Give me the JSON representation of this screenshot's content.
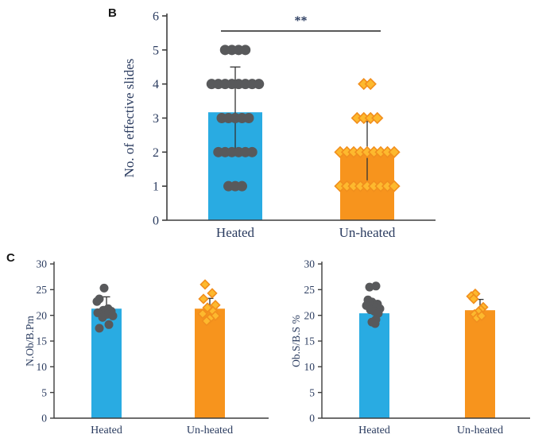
{
  "figure": {
    "panel_b_label": "B",
    "panel_c_label": "C"
  },
  "colors": {
    "blue_bar": "#29ABE2",
    "orange_bar": "#F7941D",
    "gray_marker": "#58595B",
    "diamond_fill": "#FDB92E",
    "diamond_stroke": "#F18E1D",
    "axis": "#3D3D3D",
    "error_bar": "#333333",
    "text": "#2A3B5F",
    "panel_letter": "#161616"
  },
  "chart_data": [
    {
      "id": "panel-b-chart",
      "type": "bar",
      "title": "",
      "xlabel": "",
      "ylabel": "No. of effective slides",
      "ylim": [
        0,
        6
      ],
      "yticks": [
        0,
        1,
        2,
        3,
        4,
        5,
        6
      ],
      "categories": [
        "Heated",
        "Un-heated"
      ],
      "points_mode": "rows",
      "significance": {
        "label": "**",
        "between": [
          "Heated",
          "Un-heated"
        ]
      },
      "series": [
        {
          "name": "Heated",
          "bar": 3.17,
          "err_low": 2.1,
          "err_high": 4.5,
          "err_style": "both",
          "bar_color": "#29ABE2",
          "marker": "circle",
          "marker_fill": "#58595B",
          "points": [
            5,
            5,
            5,
            5,
            4,
            4,
            4,
            4,
            4,
            4,
            4,
            4,
            3,
            3,
            3,
            3,
            3,
            2,
            2,
            2,
            2,
            2,
            2,
            1,
            1,
            1
          ]
        },
        {
          "name": "Un-heated",
          "bar": 1.96,
          "err_low": 1.05,
          "err_high": 2.9,
          "err_style": "both",
          "bar_color": "#F7941D",
          "marker": "diamond",
          "marker_fill": "#FDB92E",
          "marker_stroke": "#F18E1D",
          "points": [
            4,
            4,
            3,
            3,
            3,
            3,
            2,
            2,
            2,
            2,
            2,
            2,
            2,
            2,
            2,
            1,
            1,
            1,
            1,
            1,
            1,
            1,
            1,
            1
          ]
        }
      ]
    },
    {
      "id": "panel-c-left-chart",
      "type": "bar",
      "title": "",
      "xlabel": "",
      "ylabel": "N.Ob/B.Pm",
      "ylim": [
        0,
        30
      ],
      "yticks": [
        0,
        5,
        10,
        15,
        20,
        25,
        30
      ],
      "categories": [
        "Heated",
        "Un-heated"
      ],
      "points_mode": "jitter",
      "series": [
        {
          "name": "Heated",
          "bar": 21.3,
          "err_low": 21.3,
          "err_high": 23.6,
          "err_style": "upper",
          "bar_color": "#29ABE2",
          "marker": "circle",
          "marker_fill": "#58595B",
          "points": [
            [
              -3,
              25.3
            ],
            [
              -9,
              23.2
            ],
            [
              -12,
              22.7
            ],
            [
              2,
              21.3
            ],
            [
              -4,
              21.0
            ],
            [
              6,
              20.8
            ],
            [
              -11,
              20.5
            ],
            [
              1,
              20.2
            ],
            [
              8,
              19.9
            ],
            [
              -5,
              19.6
            ],
            [
              3,
              18.2
            ],
            [
              -9,
              17.5
            ]
          ]
        },
        {
          "name": "Un-heated",
          "bar": 21.3,
          "err_low": 21.3,
          "err_high": 23.3,
          "err_style": "upper",
          "bar_color": "#F7941D",
          "marker": "diamond",
          "marker_fill": "#FDB92E",
          "marker_stroke": "#F18E1D",
          "points": [
            [
              -6,
              26.0
            ],
            [
              3,
              24.3
            ],
            [
              -8,
              23.2
            ],
            [
              7,
              22.0
            ],
            [
              -3,
              21.5
            ],
            [
              4,
              20.8
            ],
            [
              -9,
              20.3
            ],
            [
              7,
              19.9
            ],
            [
              0,
              19.4
            ],
            [
              -4,
              18.9
            ]
          ]
        }
      ]
    },
    {
      "id": "panel-c-right-chart",
      "type": "bar",
      "title": "",
      "xlabel": "",
      "ylabel": "Ob.S/B.S %",
      "ylim": [
        0,
        30
      ],
      "yticks": [
        0,
        5,
        10,
        15,
        20,
        25,
        30
      ],
      "categories": [
        "Heated",
        "Un-heated"
      ],
      "points_mode": "jitter",
      "series": [
        {
          "name": "Heated",
          "bar": 20.4,
          "err_low": 20.4,
          "err_high": 22.6,
          "err_style": "upper",
          "bar_color": "#29ABE2",
          "marker": "circle",
          "marker_fill": "#58595B",
          "points": [
            [
              -6,
              25.5
            ],
            [
              2,
              25.7
            ],
            [
              -8,
              23.0
            ],
            [
              -3,
              22.6
            ],
            [
              4,
              22.2
            ],
            [
              -10,
              21.9
            ],
            [
              1,
              21.6
            ],
            [
              7,
              21.3
            ],
            [
              -5,
              21.1
            ],
            [
              0,
              20.8
            ],
            [
              5,
              20.4
            ],
            [
              2,
              19.2
            ],
            [
              -3,
              18.7
            ],
            [
              1,
              18.4
            ]
          ]
        },
        {
          "name": "Un-heated",
          "bar": 21.0,
          "err_low": 21.0,
          "err_high": 23.1,
          "err_style": "upper",
          "bar_color": "#F7941D",
          "marker": "diamond",
          "marker_fill": "#FDB92E",
          "marker_stroke": "#F18E1D",
          "points": [
            [
              -6,
              24.2
            ],
            [
              -11,
              23.7
            ],
            [
              -8,
              23.2
            ],
            [
              4,
              21.6
            ],
            [
              1,
              21.1
            ],
            [
              -2,
              20.7
            ],
            [
              -7,
              20.2
            ],
            [
              -4,
              19.5
            ],
            [
              2,
              19.9
            ]
          ]
        }
      ]
    }
  ]
}
